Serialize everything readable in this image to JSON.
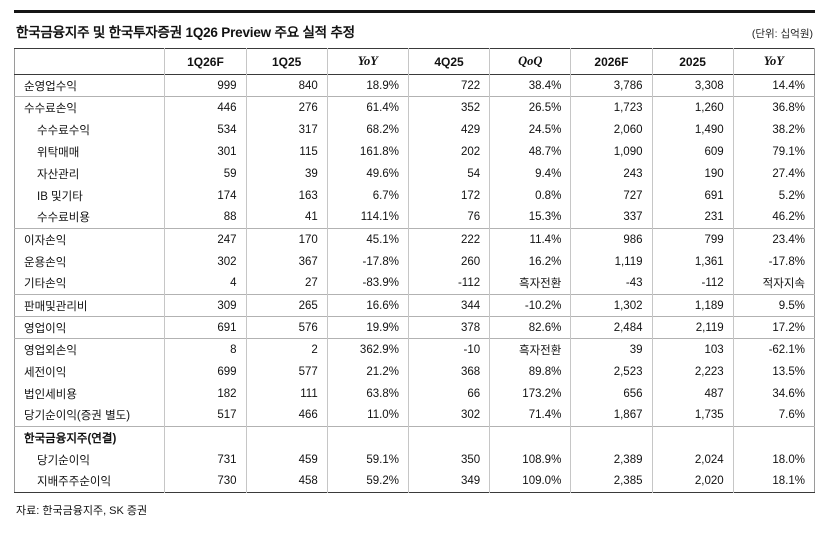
{
  "meta": {
    "title": "한국금융지주 및 한국투자증권 1Q26 Preview 주요 실적 추정",
    "unit": "(단위: 십억원)",
    "source": "자료: 한국금융지주, SK 증권"
  },
  "table": {
    "headers": [
      "",
      "1Q26F",
      "1Q25",
      "YoY",
      "4Q25",
      "QoQ",
      "2026F",
      "2025",
      "YoY"
    ],
    "italic_columns": [
      3,
      5,
      8
    ],
    "rows": [
      {
        "label": "순영업수익",
        "indent": 0,
        "bold": false,
        "section": false,
        "topline": false,
        "cells": [
          "999",
          "840",
          "18.9%",
          "722",
          "38.4%",
          "3,786",
          "3,308",
          "14.4%"
        ]
      },
      {
        "label": "수수료손익",
        "indent": 0,
        "bold": false,
        "section": false,
        "topline": true,
        "cells": [
          "446",
          "276",
          "61.4%",
          "352",
          "26.5%",
          "1,723",
          "1,260",
          "36.8%"
        ]
      },
      {
        "label": "수수료수익",
        "indent": 1,
        "bold": false,
        "section": false,
        "topline": false,
        "cells": [
          "534",
          "317",
          "68.2%",
          "429",
          "24.5%",
          "2,060",
          "1,490",
          "38.2%"
        ]
      },
      {
        "label": "위탁매매",
        "indent": 1,
        "bold": false,
        "section": false,
        "topline": false,
        "cells": [
          "301",
          "115",
          "161.8%",
          "202",
          "48.7%",
          "1,090",
          "609",
          "79.1%"
        ]
      },
      {
        "label": "자산관리",
        "indent": 1,
        "bold": false,
        "section": false,
        "topline": false,
        "cells": [
          "59",
          "39",
          "49.6%",
          "54",
          "9.4%",
          "243",
          "190",
          "27.4%"
        ]
      },
      {
        "label": "IB 및기타",
        "indent": 1,
        "bold": false,
        "section": false,
        "topline": false,
        "cells": [
          "174",
          "163",
          "6.7%",
          "172",
          "0.8%",
          "727",
          "691",
          "5.2%"
        ]
      },
      {
        "label": "수수료비용",
        "indent": 1,
        "bold": false,
        "section": false,
        "topline": false,
        "cells": [
          "88",
          "41",
          "114.1%",
          "76",
          "15.3%",
          "337",
          "231",
          "46.2%"
        ]
      },
      {
        "label": "이자손익",
        "indent": 0,
        "bold": false,
        "section": false,
        "topline": true,
        "cells": [
          "247",
          "170",
          "45.1%",
          "222",
          "11.4%",
          "986",
          "799",
          "23.4%"
        ]
      },
      {
        "label": "운용손익",
        "indent": 0,
        "bold": false,
        "section": false,
        "topline": false,
        "cells": [
          "302",
          "367",
          "-17.8%",
          "260",
          "16.2%",
          "1,119",
          "1,361",
          "-17.8%"
        ]
      },
      {
        "label": "기타손익",
        "indent": 0,
        "bold": false,
        "section": false,
        "topline": false,
        "cells": [
          "4",
          "27",
          "-83.9%",
          "-112",
          "흑자전환",
          "-43",
          "-112",
          "적자지속"
        ]
      },
      {
        "label": "판매및관리비",
        "indent": 0,
        "bold": false,
        "section": false,
        "topline": true,
        "cells": [
          "309",
          "265",
          "16.6%",
          "344",
          "-10.2%",
          "1,302",
          "1,189",
          "9.5%"
        ]
      },
      {
        "label": "영업이익",
        "indent": 0,
        "bold": false,
        "section": false,
        "topline": true,
        "cells": [
          "691",
          "576",
          "19.9%",
          "378",
          "82.6%",
          "2,484",
          "2,119",
          "17.2%"
        ]
      },
      {
        "label": "영업외손익",
        "indent": 0,
        "bold": false,
        "section": false,
        "topline": true,
        "cells": [
          "8",
          "2",
          "362.9%",
          "-10",
          "흑자전환",
          "39",
          "103",
          "-62.1%"
        ]
      },
      {
        "label": "세전이익",
        "indent": 0,
        "bold": false,
        "section": false,
        "topline": false,
        "cells": [
          "699",
          "577",
          "21.2%",
          "368",
          "89.8%",
          "2,523",
          "2,223",
          "13.5%"
        ]
      },
      {
        "label": "법인세비용",
        "indent": 0,
        "bold": false,
        "section": false,
        "topline": false,
        "cells": [
          "182",
          "111",
          "63.8%",
          "66",
          "173.2%",
          "656",
          "487",
          "34.6%"
        ]
      },
      {
        "label": "당기순이익(증권 별도)",
        "indent": 0,
        "bold": false,
        "section": false,
        "topline": false,
        "cells": [
          "517",
          "466",
          "11.0%",
          "302",
          "71.4%",
          "1,867",
          "1,735",
          "7.6%"
        ]
      },
      {
        "label": "한국금융지주(연결)",
        "indent": 0,
        "bold": true,
        "section": true,
        "topline": true,
        "cells": [
          "",
          "",
          "",
          "",
          "",
          "",
          "",
          ""
        ]
      },
      {
        "label": "당기순이익",
        "indent": 1,
        "bold": false,
        "section": false,
        "topline": false,
        "cells": [
          "731",
          "459",
          "59.1%",
          "350",
          "108.9%",
          "2,389",
          "2,024",
          "18.0%"
        ]
      },
      {
        "label": "지배주주순이익",
        "indent": 1,
        "bold": false,
        "section": false,
        "topline": false,
        "cells": [
          "730",
          "458",
          "59.2%",
          "349",
          "109.0%",
          "2,385",
          "2,020",
          "18.1%"
        ]
      }
    ]
  }
}
